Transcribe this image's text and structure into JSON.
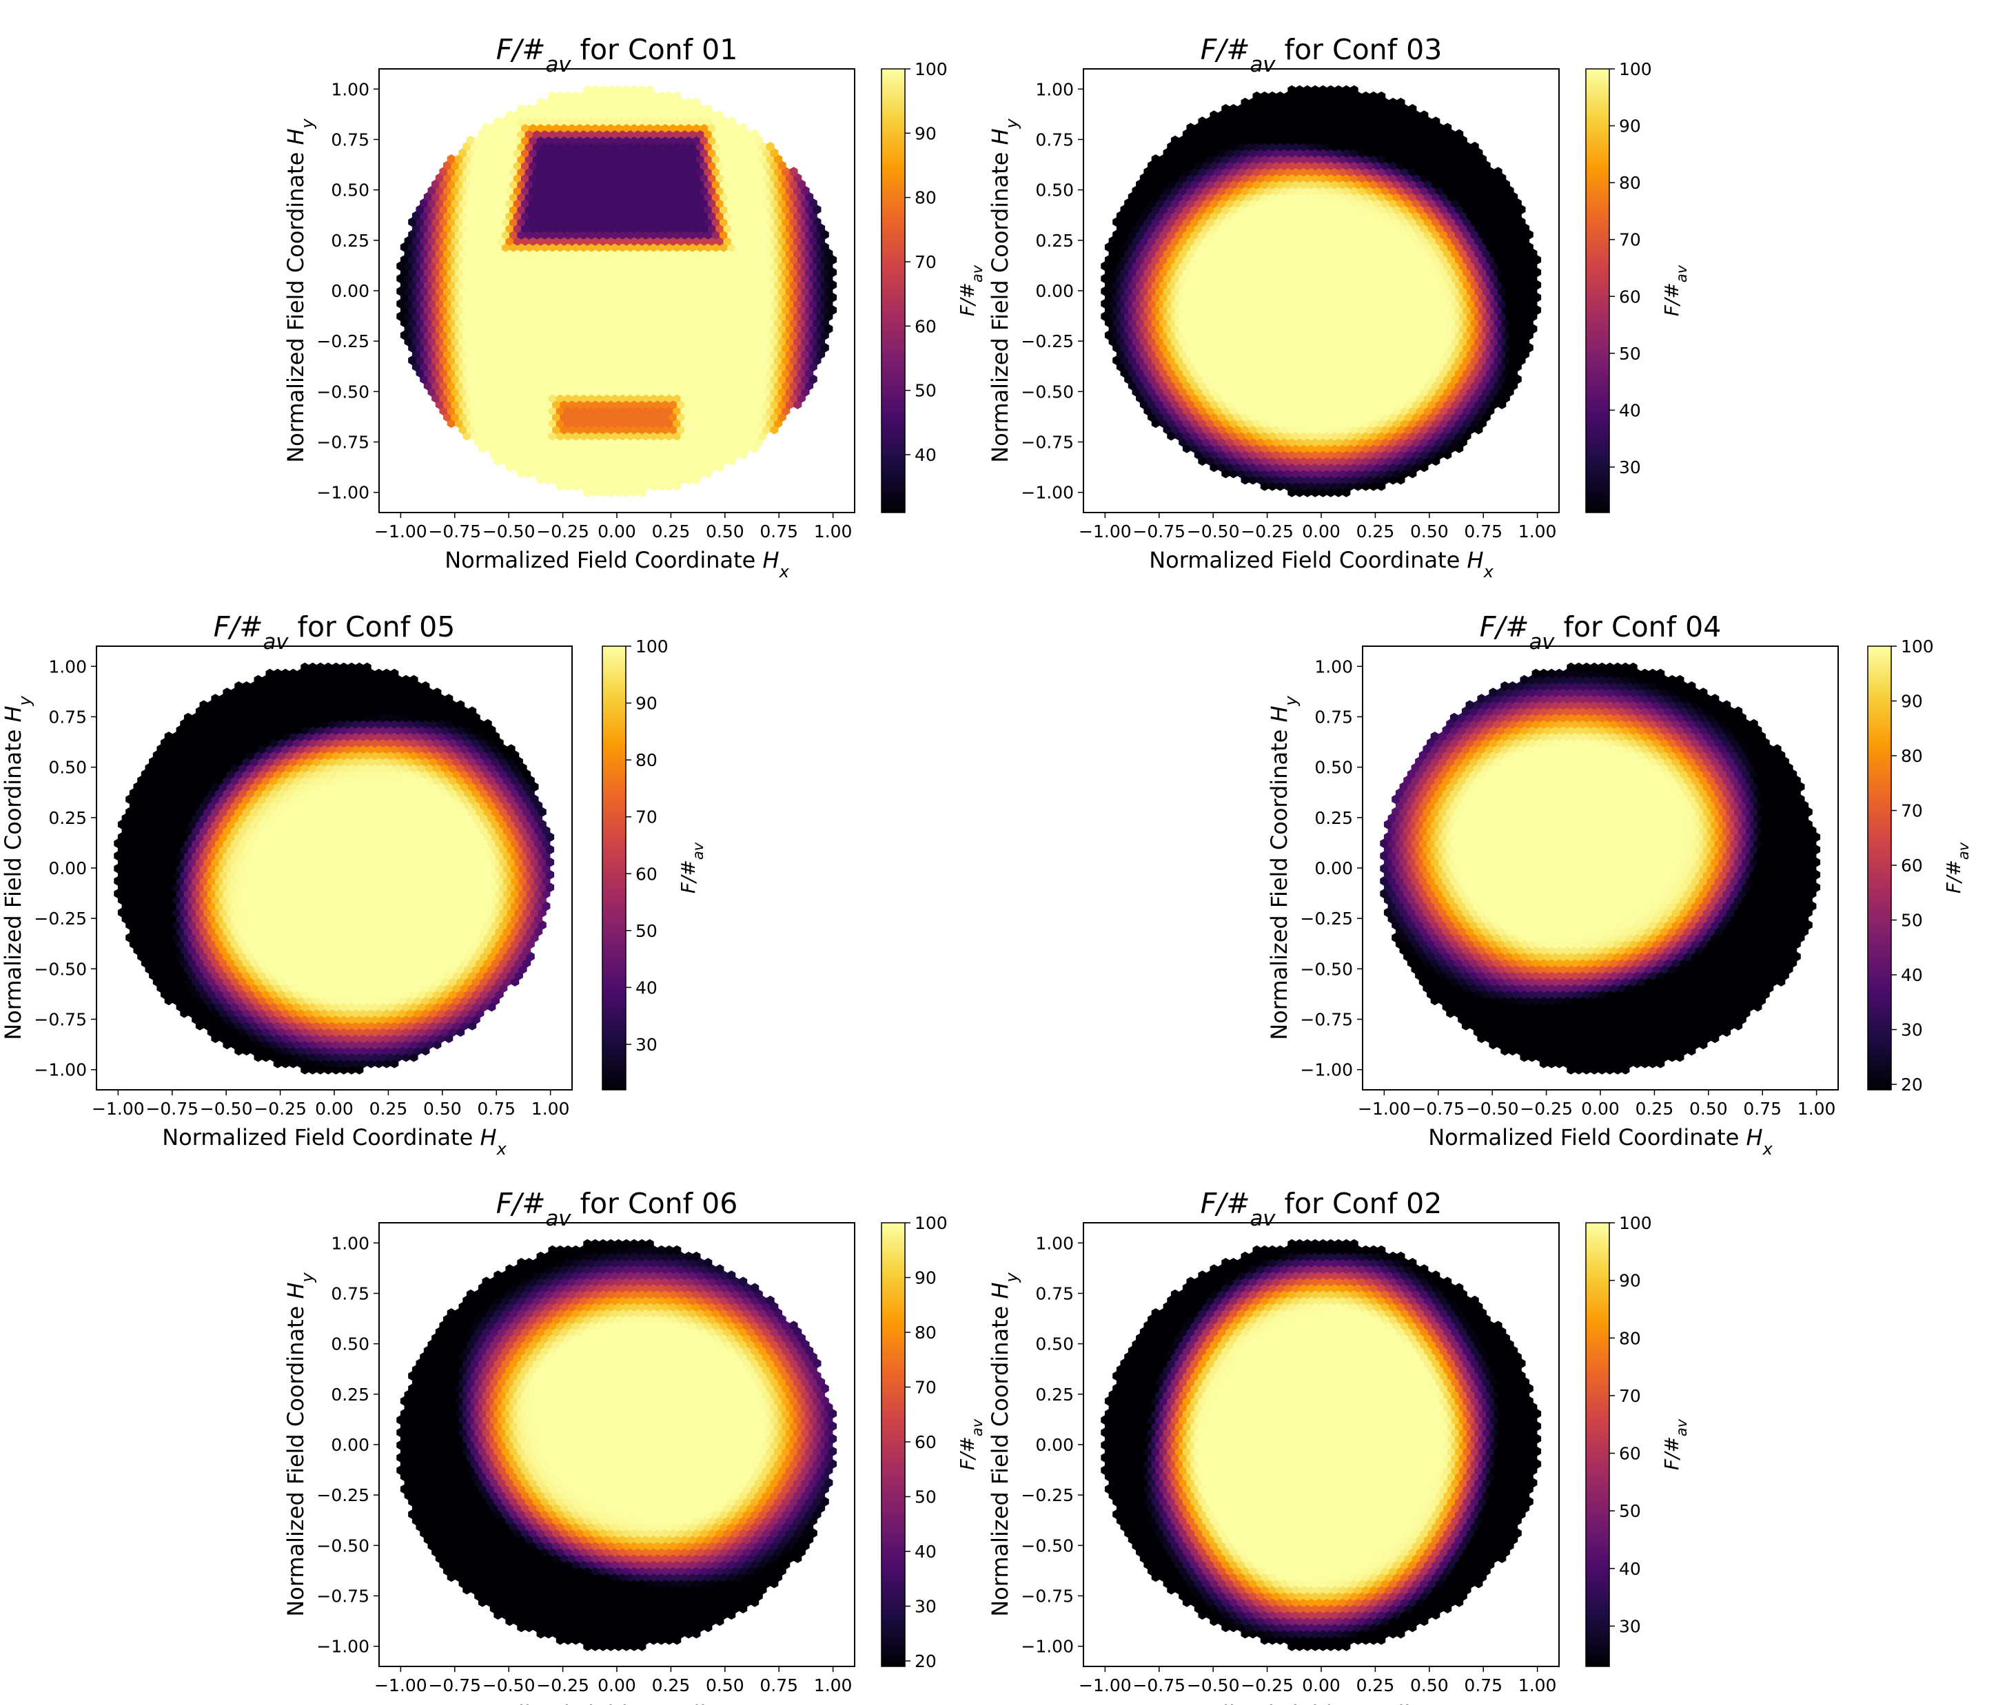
{
  "figure": {
    "title_prefix": "F/#",
    "title_sub": "av",
    "title_suffix": " for Conf ",
    "xlabel_text": "Normalized Field Coordinate ",
    "xlabel_var": "H",
    "xlabel_sub": "x",
    "ylabel_text": "Normalized Field Coordinate ",
    "ylabel_var": "H",
    "ylabel_sub": "y",
    "cbar_label_main": "F/#",
    "cbar_label_sub": "av",
    "colormap": "inferno",
    "colormap_stops": [
      "#000004",
      "#1b0c41",
      "#4a0c6b",
      "#781c6d",
      "#a52c60",
      "#cf4446",
      "#ed6925",
      "#fb9b06",
      "#f7d13d",
      "#fcffa4"
    ]
  },
  "chart_data": [
    {
      "type": "heatmap",
      "conf": "01",
      "xlim": [
        -1.1,
        1.1
      ],
      "ylim": [
        -1.1,
        1.1
      ],
      "xticks": [
        "-1.00",
        "-0.75",
        "-0.50",
        "-0.25",
        "0.00",
        "0.25",
        "0.50",
        "0.75",
        "1.00"
      ],
      "yticks": [
        "-1.00",
        "-0.75",
        "-0.50",
        "-0.25",
        "0.00",
        "0.25",
        "0.50",
        "0.75",
        "1.00"
      ],
      "cbar_range": [
        31,
        100
      ],
      "cbar_ticks": [
        40,
        50,
        60,
        70,
        80,
        90,
        100
      ],
      "description_values": {
        "center": 100,
        "upper_band": 45,
        "lower_spot": 80,
        "edge": 32
      }
    },
    {
      "type": "heatmap",
      "conf": "03",
      "xlim": [
        -1.1,
        1.1
      ],
      "ylim": [
        -1.1,
        1.1
      ],
      "xticks": [
        "-1.00",
        "-0.75",
        "-0.50",
        "-0.25",
        "0.00",
        "0.25",
        "0.50",
        "0.75",
        "1.00"
      ],
      "yticks": [
        "-1.00",
        "-0.75",
        "-0.50",
        "-0.25",
        "0.00",
        "0.25",
        "0.50",
        "0.75",
        "1.00"
      ],
      "cbar_range": [
        22,
        100
      ],
      "cbar_ticks": [
        30,
        40,
        50,
        60,
        70,
        80,
        90,
        100
      ]
    },
    {
      "type": "heatmap",
      "conf": "05",
      "xlim": [
        -1.1,
        1.1
      ],
      "ylim": [
        -1.1,
        1.1
      ],
      "xticks": [
        "-1.00",
        "-0.75",
        "-0.50",
        "-0.25",
        "0.00",
        "0.25",
        "0.50",
        "0.75",
        "1.00"
      ],
      "yticks": [
        "-1.00",
        "-0.75",
        "-0.50",
        "-0.25",
        "0.00",
        "0.25",
        "0.50",
        "0.75",
        "1.00"
      ],
      "cbar_range": [
        22,
        100
      ],
      "cbar_ticks": [
        30,
        40,
        50,
        60,
        70,
        80,
        90,
        100
      ]
    },
    {
      "type": "heatmap",
      "conf": "04",
      "xlim": [
        -1.1,
        1.1
      ],
      "ylim": [
        -1.1,
        1.1
      ],
      "xticks": [
        "-1.00",
        "-0.75",
        "-0.50",
        "-0.25",
        "0.00",
        "0.25",
        "0.50",
        "0.75",
        "1.00"
      ],
      "yticks": [
        "-1.00",
        "-0.75",
        "-0.50",
        "-0.25",
        "0.00",
        "0.25",
        "0.50",
        "0.75",
        "1.00"
      ],
      "cbar_range": [
        19,
        100
      ],
      "cbar_ticks": [
        20,
        30,
        40,
        50,
        60,
        70,
        80,
        90,
        100
      ]
    },
    {
      "type": "heatmap",
      "conf": "06",
      "xlim": [
        -1.1,
        1.1
      ],
      "ylim": [
        -1.1,
        1.1
      ],
      "xticks": [
        "-1.00",
        "-0.75",
        "-0.50",
        "-0.25",
        "0.00",
        "0.25",
        "0.50",
        "0.75",
        "1.00"
      ],
      "yticks": [
        "-1.00",
        "-0.75",
        "-0.50",
        "-0.25",
        "0.00",
        "0.25",
        "0.50",
        "0.75",
        "1.00"
      ],
      "cbar_range": [
        19,
        100
      ],
      "cbar_ticks": [
        20,
        30,
        40,
        50,
        60,
        70,
        80,
        90,
        100
      ]
    },
    {
      "type": "heatmap",
      "conf": "02",
      "xlim": [
        -1.1,
        1.1
      ],
      "ylim": [
        -1.1,
        1.1
      ],
      "xticks": [
        "-1.00",
        "-0.75",
        "-0.50",
        "-0.25",
        "0.00",
        "0.25",
        "0.50",
        "0.75",
        "1.00"
      ],
      "yticks": [
        "-1.00",
        "-0.75",
        "-0.50",
        "-0.25",
        "0.00",
        "0.25",
        "0.50",
        "0.75",
        "1.00"
      ],
      "cbar_range": [
        23,
        100
      ],
      "cbar_ticks": [
        30,
        40,
        50,
        60,
        70,
        80,
        90,
        100
      ]
    }
  ]
}
